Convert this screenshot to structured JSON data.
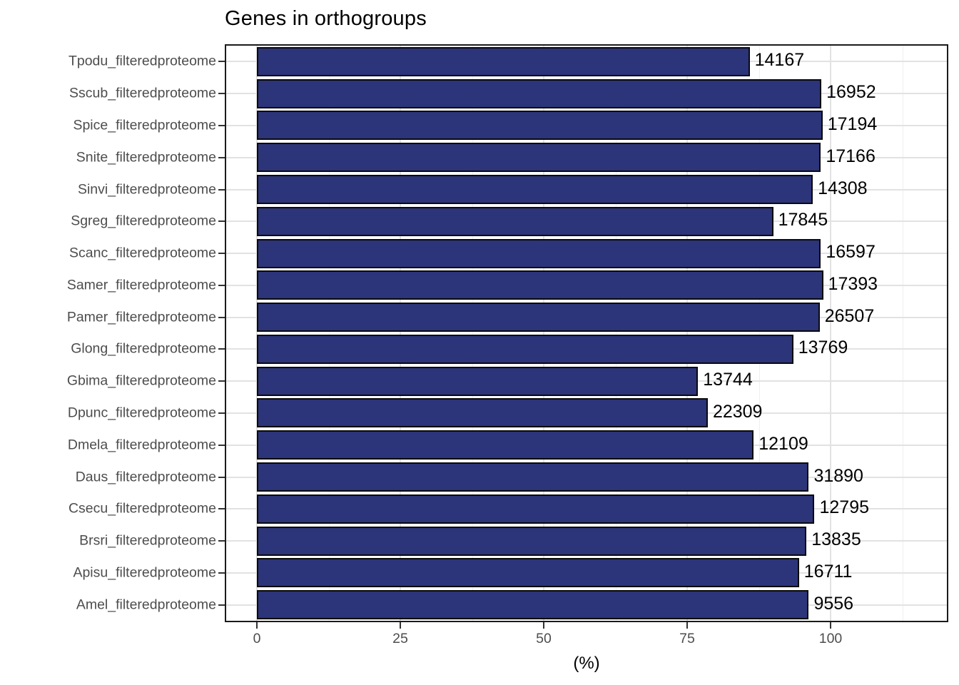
{
  "title": "Genes in orthogroups",
  "axis": {
    "xlabel": "(%)"
  },
  "colors": {
    "bar_fill": "#2c347a",
    "bar_border": "#0a0a0a",
    "panel_border": "#1a1a1a",
    "grid_major": "#e2e2e2",
    "grid_minor": "#efefef",
    "axis_text": "#4d4d4d",
    "label_text": "#000000"
  },
  "chart_data": {
    "type": "bar",
    "orientation": "horizontal",
    "title": "Genes in orthogroups",
    "xlabel": "(%)",
    "xlim": [
      0,
      120
    ],
    "grid": true,
    "x_major_ticks": [
      0,
      25,
      50,
      75,
      100
    ],
    "x_minor_ticks": [
      12.5,
      37.5,
      62.5,
      87.5,
      112.5
    ],
    "categories": [
      "Tpodu_filteredproteome",
      "Sscub_filteredproteome",
      "Spice_filteredproteome",
      "Snite_filteredproteome",
      "Sinvi_filteredproteome",
      "Sgreg_filteredproteome",
      "Scanc_filteredproteome",
      "Samer_filteredproteome",
      "Pamer_filteredproteome",
      "Glong_filteredproteome",
      "Gbima_filteredproteome",
      "Dpunc_filteredproteome",
      "Dmela_filteredproteome",
      "Daus_filteredproteome",
      "Csecu_filteredproteome",
      "Brsri_filteredproteome",
      "Apisu_filteredproteome",
      "Amel_filteredproteome"
    ],
    "series": [
      {
        "name": "percent_genes_in_orthogroups",
        "values": [
          85.9,
          98.4,
          98.6,
          98.3,
          96.9,
          90.0,
          98.3,
          98.7,
          98.1,
          93.5,
          76.9,
          78.6,
          86.6,
          96.2,
          97.2,
          95.8,
          94.5,
          96.2
        ]
      },
      {
        "name": "gene_count_labels",
        "values": [
          14167,
          16952,
          17194,
          17166,
          14308,
          17845,
          16597,
          17393,
          26507,
          13769,
          13744,
          22309,
          12109,
          31890,
          12795,
          13835,
          16711,
          9556
        ]
      }
    ]
  }
}
